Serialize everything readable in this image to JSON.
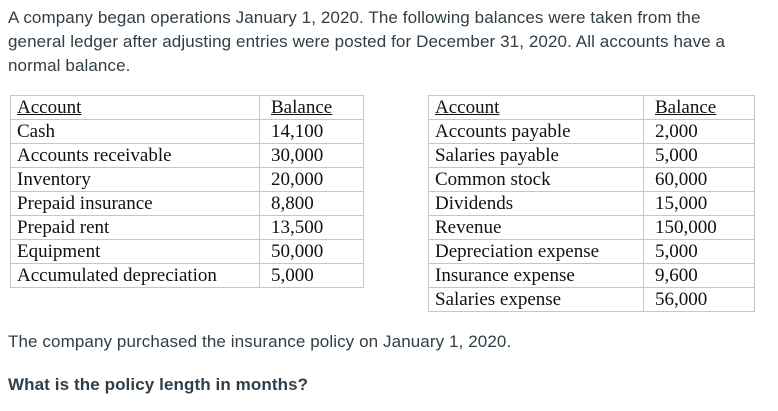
{
  "intro": "A company began operations January 1, 2020. The following balances were taken from the\ngeneral ledger after adjusting entries were posted for December 31, 2020. All accounts have a\nnormal balance.",
  "tables": [
    {
      "headers": [
        "Account",
        "Balance"
      ],
      "rows": [
        [
          "Cash",
          "14,100"
        ],
        [
          "Accounts receivable",
          "30,000"
        ],
        [
          "Inventory",
          "20,000"
        ],
        [
          "Prepaid insurance",
          "8,800"
        ],
        [
          "Prepaid rent",
          "13,500"
        ],
        [
          "Equipment",
          "50,000"
        ],
        [
          "Accumulated depreciation",
          "5,000"
        ]
      ]
    },
    {
      "headers": [
        "Account",
        "Balance"
      ],
      "rows": [
        [
          "Accounts payable",
          "2,000"
        ],
        [
          "Salaries payable",
          "5,000"
        ],
        [
          "Common stock",
          "60,000"
        ],
        [
          "Dividends",
          "15,000"
        ],
        [
          "Revenue",
          "150,000"
        ],
        [
          "Depreciation expense",
          "5,000"
        ],
        [
          "Insurance expense",
          "9,600"
        ],
        [
          "Salaries expense",
          "56,000"
        ]
      ]
    }
  ],
  "note": "The company purchased the insurance policy on January 1, 2020.",
  "question": "What is the policy length in months?",
  "colors": {
    "body_text": "#2f3e48",
    "table_text": "#111111",
    "table_border": "#c6c6c6",
    "background": "#ffffff"
  }
}
